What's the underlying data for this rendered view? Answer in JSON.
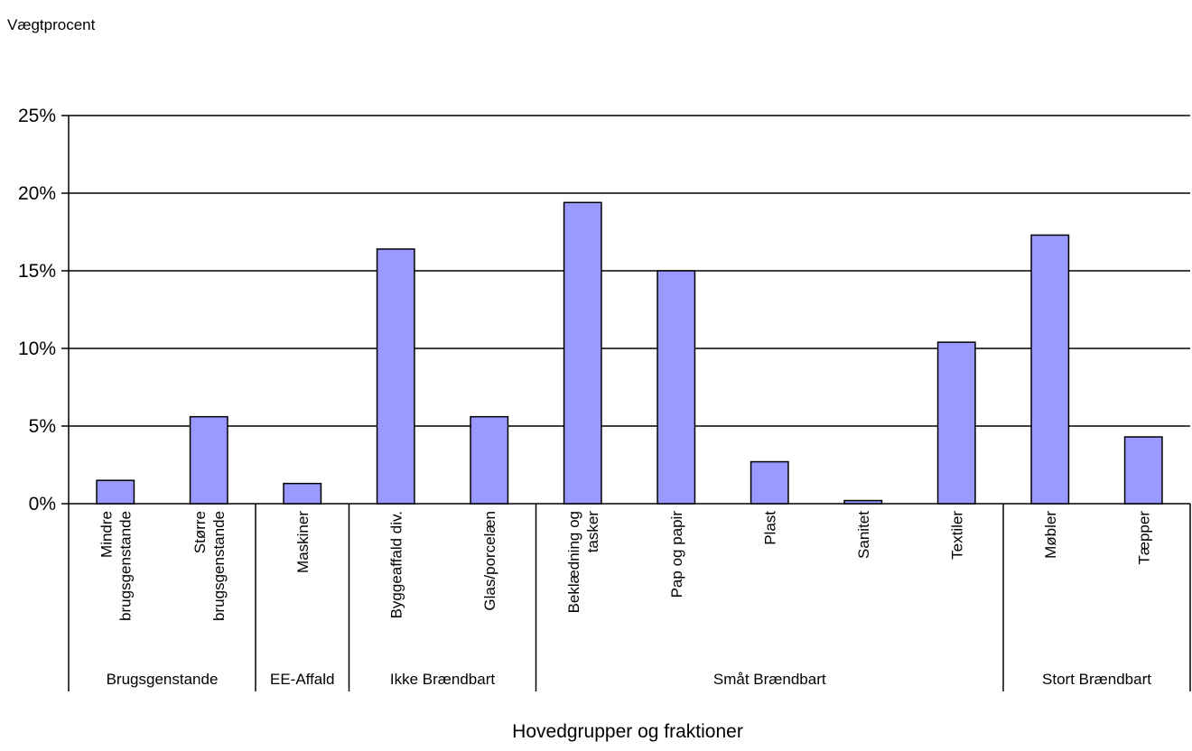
{
  "chart_data": {
    "type": "bar",
    "ylabel": "Vægtprocent",
    "xlabel": "Hovedgrupper og fraktioner",
    "ylim": [
      0,
      25
    ],
    "yticks": [
      0,
      5,
      10,
      15,
      20,
      25
    ],
    "ytick_labels": [
      "0%",
      "5%",
      "10%",
      "15%",
      "20%",
      "25%"
    ],
    "grid": true,
    "bar_color": "#9999ff",
    "categories": [
      [
        "Mindre",
        "brugsgenstande"
      ],
      [
        "Større",
        "brugsgenstande"
      ],
      [
        "Maskiner"
      ],
      [
        "Byggeaffald div."
      ],
      [
        "Glas/porcelæn"
      ],
      [
        "Beklædning og",
        "tasker"
      ],
      [
        "Pap og papir"
      ],
      [
        "Plast"
      ],
      [
        "Sanitet"
      ],
      [
        "Textiler"
      ],
      [
        "Møbler"
      ],
      [
        "Tæpper"
      ]
    ],
    "values": [
      1.5,
      5.6,
      1.3,
      16.4,
      5.6,
      19.4,
      15.0,
      2.7,
      0.2,
      10.4,
      17.3,
      4.3
    ],
    "groups": [
      {
        "label": "Brugsgenstande",
        "count": 2
      },
      {
        "label": "EE-Affald",
        "count": 1
      },
      {
        "label": "Ikke Brændbart",
        "count": 2
      },
      {
        "label": "Småt Brændbart",
        "count": 5
      },
      {
        "label": "Stort Brændbart",
        "count": 2
      }
    ]
  }
}
